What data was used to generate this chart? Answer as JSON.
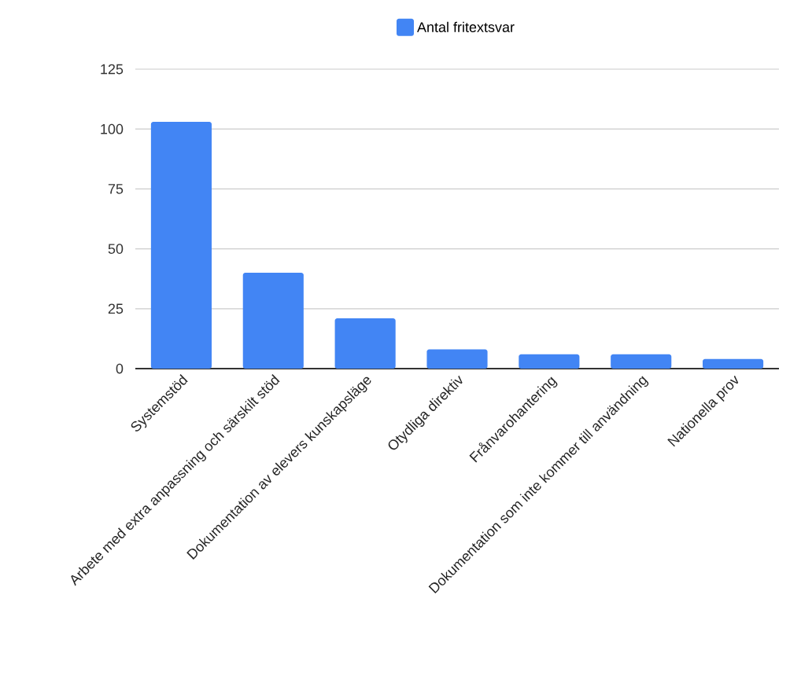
{
  "chart_data": {
    "type": "bar",
    "categories": [
      "Systemstöd",
      "Arbete med extra anpassning och särskilt stöd",
      "Dokumentation av elevers kunskapsläge",
      "Otydliga direktiv",
      "Frånvarohantering",
      "Dokumentation som inte kommer till användning",
      "Nationella prov"
    ],
    "series": [
      {
        "name": "Antal fritextsvar",
        "color": "#4285f4",
        "values": [
          103,
          40,
          21,
          8,
          6,
          6,
          4
        ]
      }
    ],
    "ylim": [
      0,
      125
    ],
    "yticks": [
      0,
      25,
      50,
      75,
      100,
      125
    ],
    "grid": "y",
    "legend": "top"
  }
}
